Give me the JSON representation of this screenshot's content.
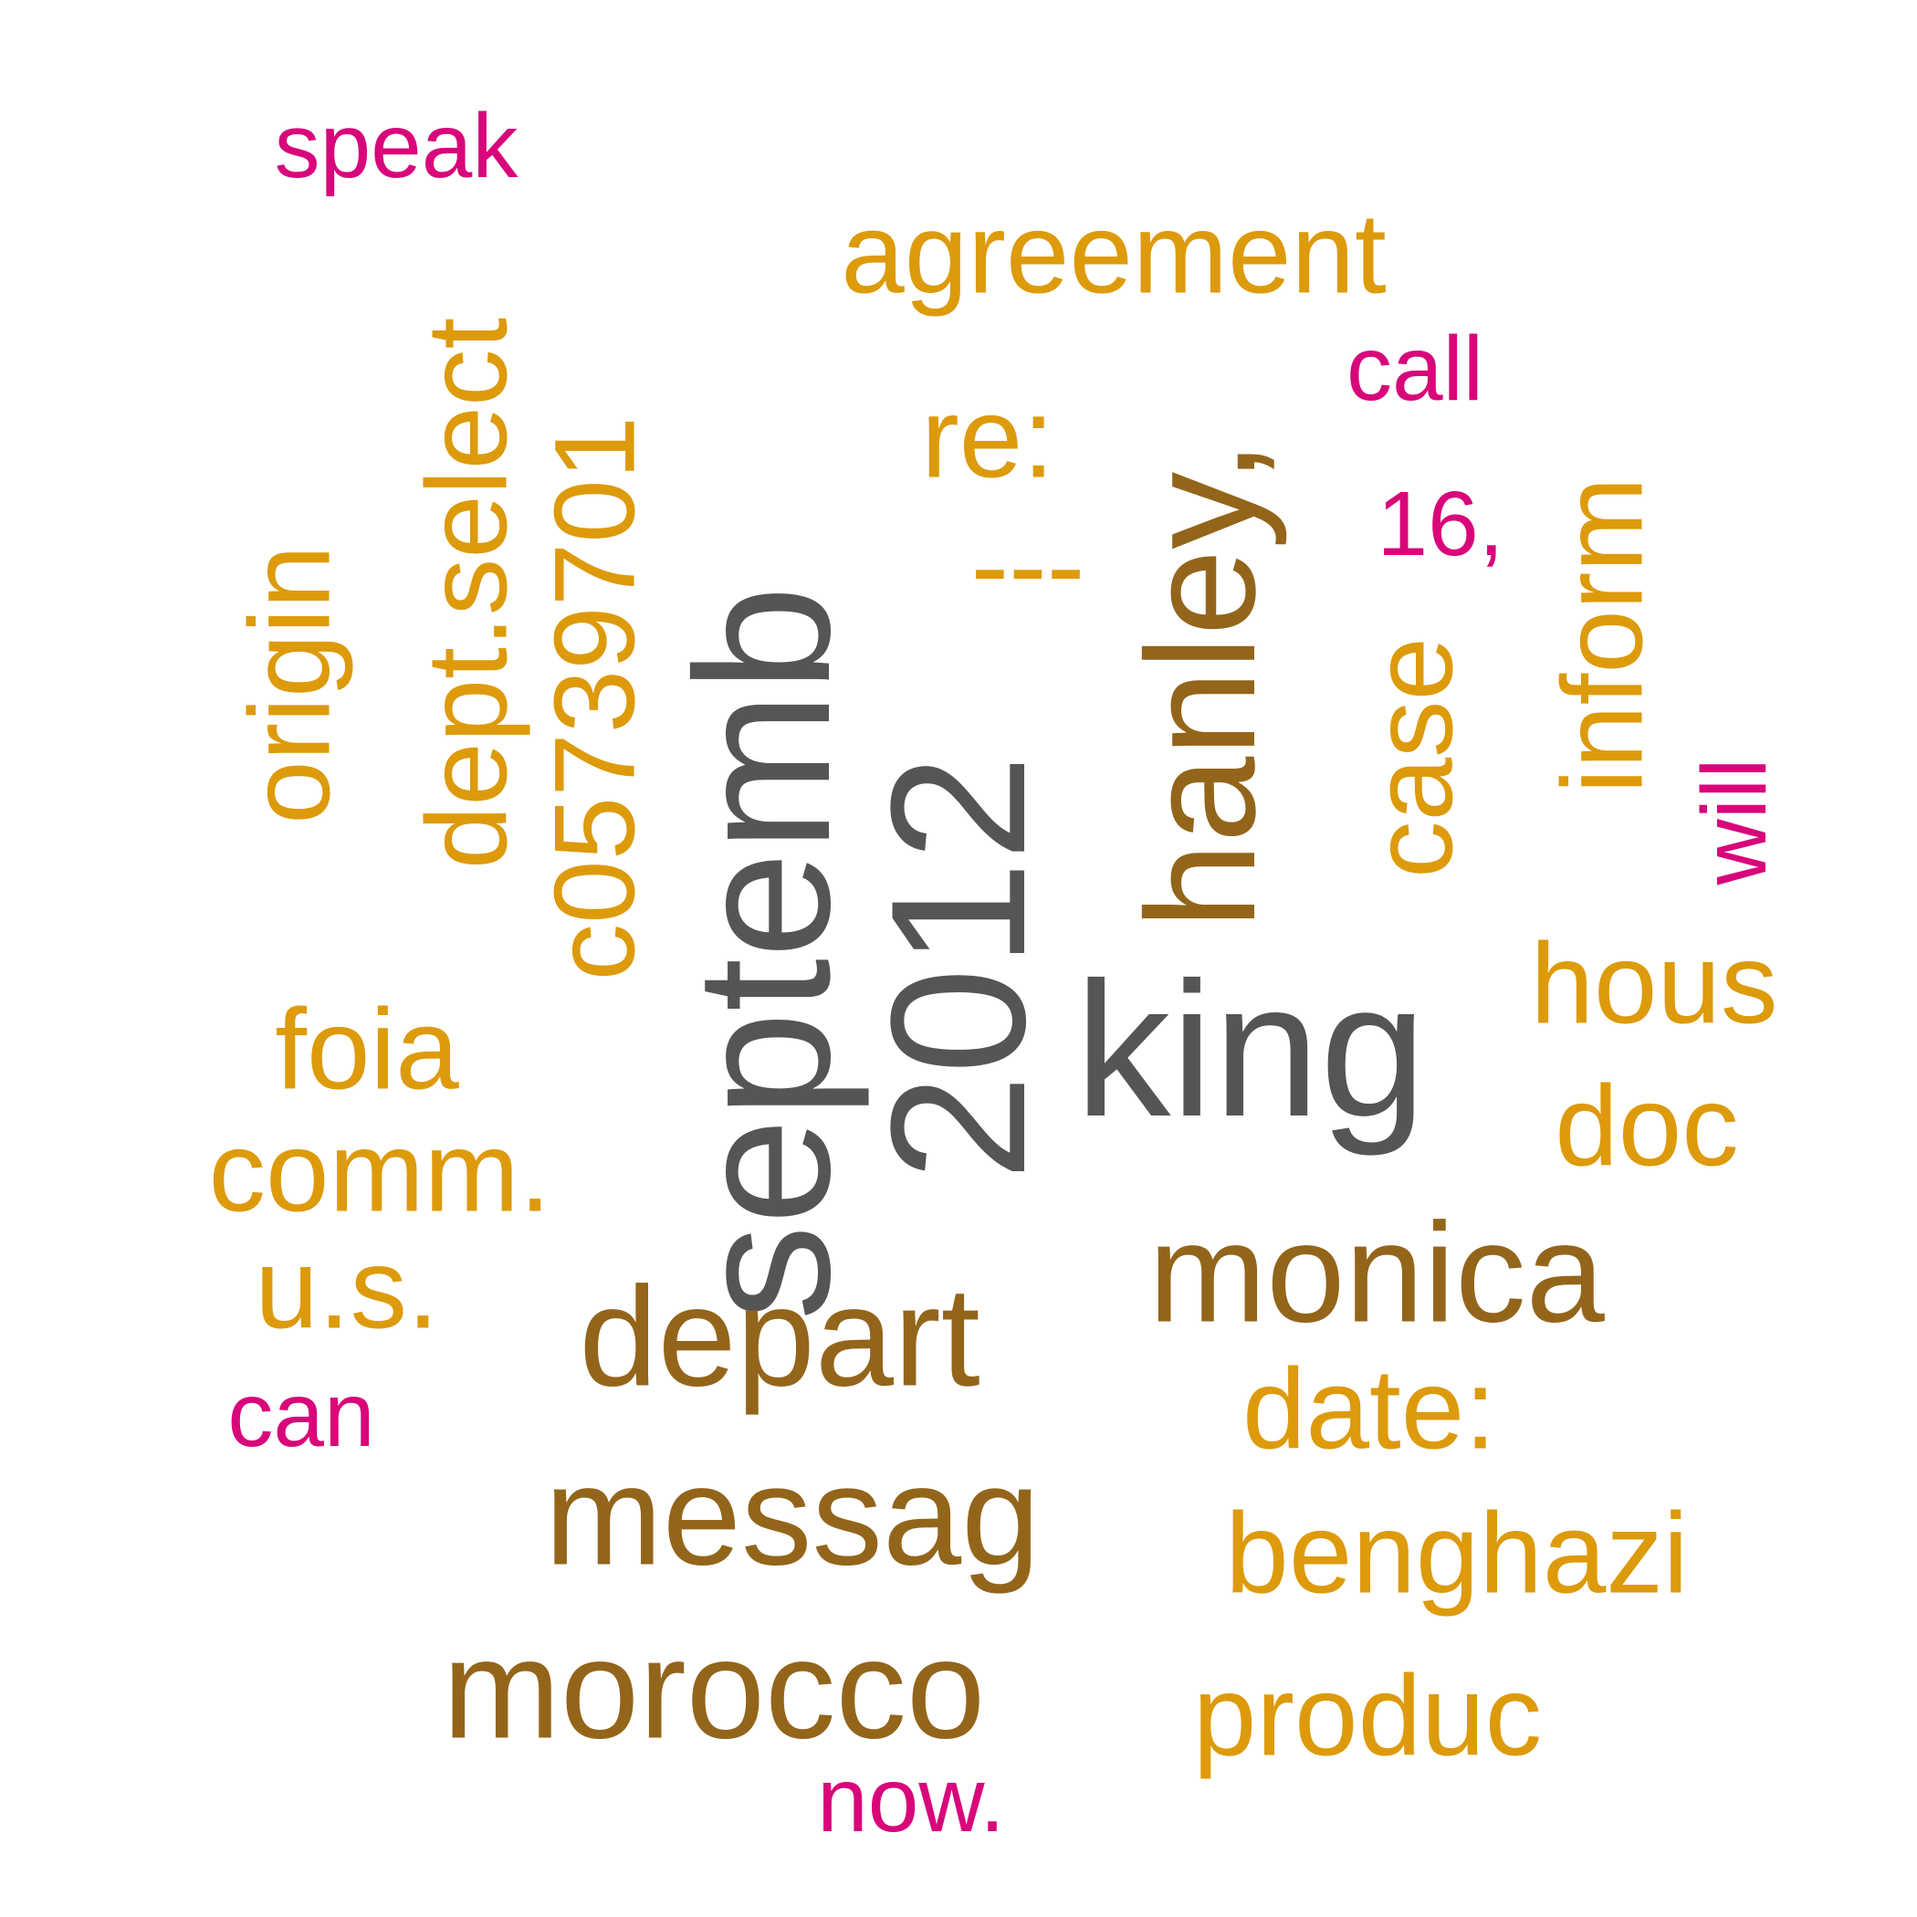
{
  "palette": {
    "gray": "#555555",
    "brown": "#93651b",
    "gold": "#dd9a0b",
    "magenta": "#d8067a"
  },
  "words": [
    {
      "id": "septemb",
      "text": "septemb",
      "color_role": "gray",
      "rotated": true
    },
    {
      "id": "2012",
      "text": "2012",
      "color_role": "gray",
      "rotated": true
    },
    {
      "id": "king",
      "text": "king",
      "color_role": "gray",
      "rotated": false
    },
    {
      "id": "hanley",
      "text": "hanley,",
      "color_role": "brown",
      "rotated": true
    },
    {
      "id": "monica",
      "text": "monica",
      "color_role": "brown",
      "rotated": false
    },
    {
      "id": "depart",
      "text": "depart",
      "color_role": "brown",
      "rotated": false
    },
    {
      "id": "messag",
      "text": "messag",
      "color_role": "brown",
      "rotated": false
    },
    {
      "id": "morocco",
      "text": "morocco",
      "color_role": "brown",
      "rotated": false
    },
    {
      "id": "agreement",
      "text": "agreement",
      "color_role": "gold",
      "rotated": false
    },
    {
      "id": "dept-select",
      "text": "dept.select",
      "color_role": "gold",
      "rotated": true
    },
    {
      "id": "c05739701",
      "text": "c05739701",
      "color_role": "gold",
      "rotated": true
    },
    {
      "id": "origin",
      "text": "origin",
      "color_role": "gold",
      "rotated": true
    },
    {
      "id": "re",
      "text": "re:",
      "color_role": "gold",
      "rotated": false
    },
    {
      "id": "dashes",
      "text": "---",
      "color_role": "gold",
      "rotated": false
    },
    {
      "id": "case",
      "text": "case",
      "color_role": "gold",
      "rotated": true
    },
    {
      "id": "inform",
      "text": "inform",
      "color_role": "gold",
      "rotated": true
    },
    {
      "id": "hous",
      "text": "hous",
      "color_role": "gold",
      "rotated": false
    },
    {
      "id": "doc",
      "text": "doc",
      "color_role": "gold",
      "rotated": false
    },
    {
      "id": "foia",
      "text": "foia",
      "color_role": "gold",
      "rotated": false
    },
    {
      "id": "comm",
      "text": "comm.",
      "color_role": "gold",
      "rotated": false
    },
    {
      "id": "us",
      "text": "u.s.",
      "color_role": "gold",
      "rotated": false
    },
    {
      "id": "date",
      "text": "date:",
      "color_role": "gold",
      "rotated": false
    },
    {
      "id": "benghazi",
      "text": "benghazi",
      "color_role": "gold",
      "rotated": false
    },
    {
      "id": "produc",
      "text": "produc",
      "color_role": "gold",
      "rotated": false
    },
    {
      "id": "speak",
      "text": "speak",
      "color_role": "magenta",
      "rotated": false
    },
    {
      "id": "call",
      "text": "call",
      "color_role": "magenta",
      "rotated": false
    },
    {
      "id": "16",
      "text": "16,",
      "color_role": "magenta",
      "rotated": false
    },
    {
      "id": "will",
      "text": "will",
      "color_role": "magenta",
      "rotated": true
    },
    {
      "id": "can",
      "text": "can",
      "color_role": "magenta",
      "rotated": false
    },
    {
      "id": "now",
      "text": "now.",
      "color_role": "magenta",
      "rotated": false
    }
  ]
}
